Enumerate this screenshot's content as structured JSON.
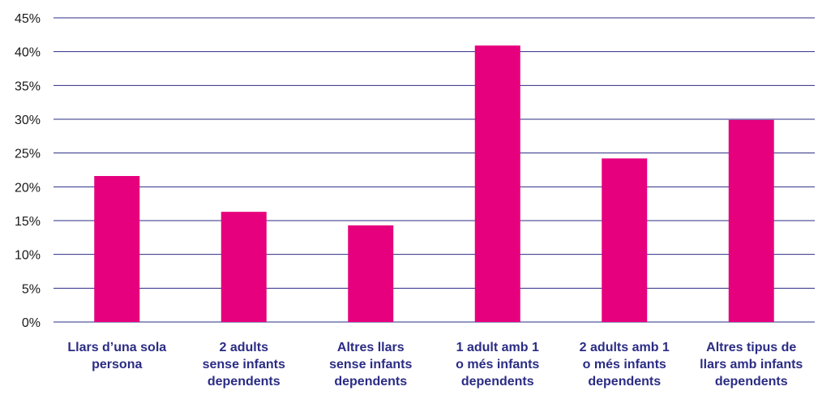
{
  "colors": {
    "bar": "#e6007e",
    "grid": "#2b2c84",
    "category_text": "#2b2c84",
    "tick_text": "#1a1a1a"
  },
  "chart_data": {
    "type": "bar",
    "title": "",
    "xlabel": "",
    "ylabel": "",
    "ylim": [
      0,
      45
    ],
    "y_ticks": [
      "0%",
      "5%",
      "10%",
      "15%",
      "20%",
      "25%",
      "30%",
      "35%",
      "40%",
      "45%"
    ],
    "y_unit": "%",
    "grid": true,
    "legend": "none",
    "categories": [
      [
        "Llars d’una sola",
        "persona"
      ],
      [
        "2 adults",
        "sense infants",
        "dependents"
      ],
      [
        "Altres llars",
        "sense infants",
        "dependents"
      ],
      [
        "1 adult amb 1",
        "o més infants",
        "dependents"
      ],
      [
        "2 adults amb 1",
        "o més infants",
        "dependents"
      ],
      [
        "Altres tipus de",
        "llars amb infants",
        "dependents"
      ]
    ],
    "values": [
      21.6,
      16.3,
      14.3,
      40.9,
      24.2,
      29.9
    ]
  }
}
